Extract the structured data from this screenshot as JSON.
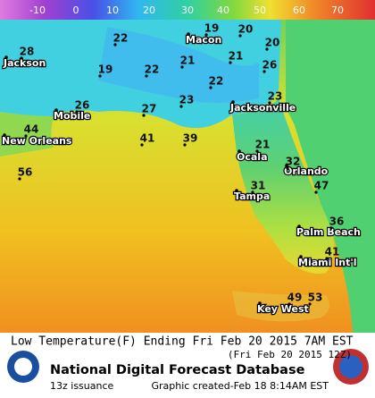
{
  "scale": {
    "ticks": [
      -10,
      0,
      10,
      20,
      30,
      40,
      50,
      60,
      70
    ]
  },
  "cities": [
    "Jackson",
    "Macon",
    "Mobile",
    "New Orleans",
    "Jacksonville",
    "Ocala",
    "Orlando",
    "Tampa",
    "Palm Beach",
    "Miami Int'l",
    "Key West"
  ],
  "temperatures": [
    28,
    22,
    20,
    20,
    19,
    19,
    22,
    21,
    21,
    26,
    22,
    26,
    27,
    23,
    23,
    44,
    41,
    39,
    21,
    32,
    56,
    31,
    47,
    36,
    41,
    49,
    53
  ],
  "footer": {
    "title": "Low Temperature(F) Ending Fri Feb 20 2015  7AM EST",
    "subtitle": "(Fri Feb 20 2015 12Z)",
    "database": "National Digital Forecast Database",
    "issuance": "13z issuance",
    "created": "Graphic created-Feb 18  8:14AM EST"
  }
}
